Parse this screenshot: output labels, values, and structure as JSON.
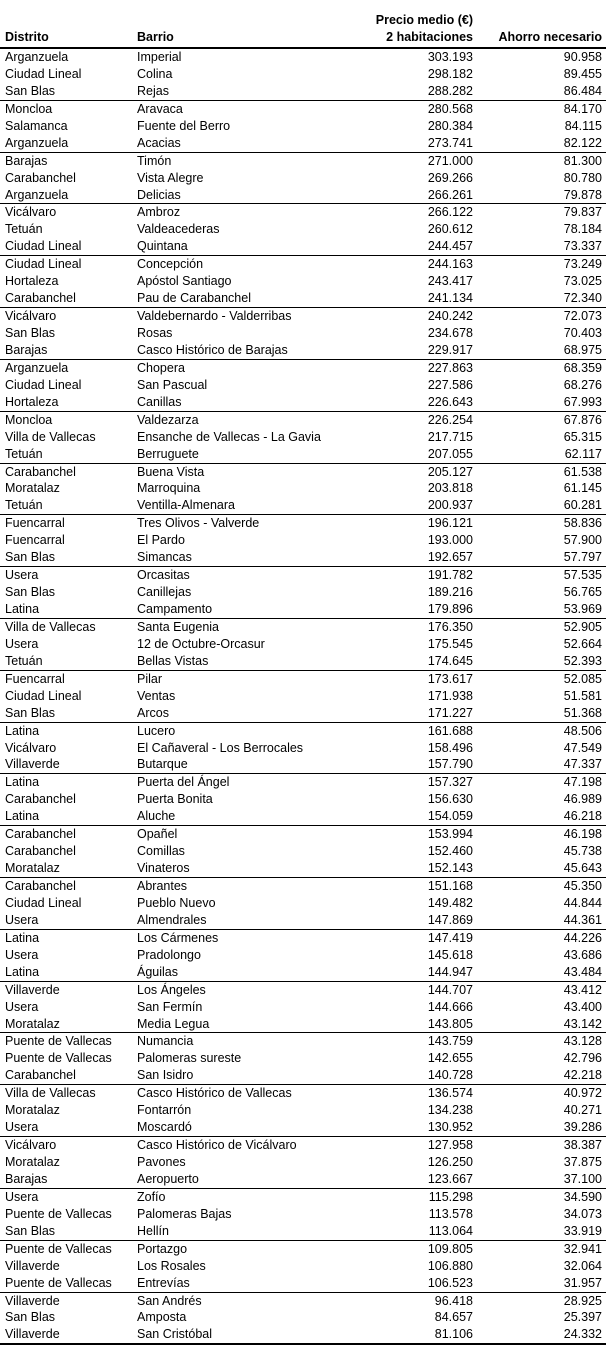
{
  "page": {
    "background_color": "#ffffff",
    "text_color": "#000000",
    "rule_color": "#000000"
  },
  "table": {
    "headers": {
      "distrito": "Distrito",
      "barrio": "Barrio",
      "precio_line1": "Precio medio (€)",
      "precio_line2": "2 habitaciones",
      "ahorro": "Ahorro necesario"
    },
    "group_size": 3,
    "rows": [
      [
        "Arganzuela",
        "Imperial",
        "303.193",
        "90.958"
      ],
      [
        "Ciudad Lineal",
        "Colina",
        "298.182",
        "89.455"
      ],
      [
        "San Blas",
        "Rejas",
        "288.282",
        "86.484"
      ],
      [
        "Moncloa",
        "Aravaca",
        "280.568",
        "84.170"
      ],
      [
        "Salamanca",
        "Fuente del Berro",
        "280.384",
        "84.115"
      ],
      [
        "Arganzuela",
        "Acacias",
        "273.741",
        "82.122"
      ],
      [
        "Barajas",
        "Timón",
        "271.000",
        "81.300"
      ],
      [
        "Carabanchel",
        "Vista Alegre",
        "269.266",
        "80.780"
      ],
      [
        "Arganzuela",
        "Delicias",
        "266.261",
        "79.878"
      ],
      [
        "Vicálvaro",
        "Ambroz",
        "266.122",
        "79.837"
      ],
      [
        "Tetuán",
        "Valdeacederas",
        "260.612",
        "78.184"
      ],
      [
        "Ciudad Lineal",
        "Quintana",
        "244.457",
        "73.337"
      ],
      [
        "Ciudad Lineal",
        "Concepción",
        "244.163",
        "73.249"
      ],
      [
        "Hortaleza",
        "Apóstol Santiago",
        "243.417",
        "73.025"
      ],
      [
        "Carabanchel",
        "Pau de Carabanchel",
        "241.134",
        "72.340"
      ],
      [
        "Vicálvaro",
        "Valdebernardo - Valderribas",
        "240.242",
        "72.073"
      ],
      [
        "San Blas",
        "Rosas",
        "234.678",
        "70.403"
      ],
      [
        "Barajas",
        "Casco Histórico de Barajas",
        "229.917",
        "68.975"
      ],
      [
        "Arganzuela",
        "Chopera",
        "227.863",
        "68.359"
      ],
      [
        "Ciudad Lineal",
        "San Pascual",
        "227.586",
        "68.276"
      ],
      [
        "Hortaleza",
        "Canillas",
        "226.643",
        "67.993"
      ],
      [
        "Moncloa",
        "Valdezarza",
        "226.254",
        "67.876"
      ],
      [
        "Villa de Vallecas",
        "Ensanche de Vallecas - La Gavia",
        "217.715",
        "65.315"
      ],
      [
        "Tetuán",
        "Berruguete",
        "207.055",
        "62.117"
      ],
      [
        "Carabanchel",
        "Buena Vista",
        "205.127",
        "61.538"
      ],
      [
        "Moratalaz",
        "Marroquina",
        "203.818",
        "61.145"
      ],
      [
        "Tetuán",
        "Ventilla-Almenara",
        "200.937",
        "60.281"
      ],
      [
        "Fuencarral",
        "Tres Olivos - Valverde",
        "196.121",
        "58.836"
      ],
      [
        "Fuencarral",
        "El Pardo",
        "193.000",
        "57.900"
      ],
      [
        "San Blas",
        "Simancas",
        "192.657",
        "57.797"
      ],
      [
        "Usera",
        "Orcasitas",
        "191.782",
        "57.535"
      ],
      [
        "San Blas",
        "Canillejas",
        "189.216",
        "56.765"
      ],
      [
        "Latina",
        "Campamento",
        "179.896",
        "53.969"
      ],
      [
        "Villa de Vallecas",
        "Santa Eugenia",
        "176.350",
        "52.905"
      ],
      [
        "Usera",
        "12 de Octubre-Orcasur",
        "175.545",
        "52.664"
      ],
      [
        "Tetuán",
        "Bellas Vistas",
        "174.645",
        "52.393"
      ],
      [
        "Fuencarral",
        "Pilar",
        "173.617",
        "52.085"
      ],
      [
        "Ciudad Lineal",
        "Ventas",
        "171.938",
        "51.581"
      ],
      [
        "San Blas",
        "Arcos",
        "171.227",
        "51.368"
      ],
      [
        "Latina",
        "Lucero",
        "161.688",
        "48.506"
      ],
      [
        "Vicálvaro",
        "El Cañaveral - Los Berrocales",
        "158.496",
        "47.549"
      ],
      [
        "Villaverde",
        "Butarque",
        "157.790",
        "47.337"
      ],
      [
        "Latina",
        "Puerta del Ángel",
        "157.327",
        "47.198"
      ],
      [
        "Carabanchel",
        "Puerta Bonita",
        "156.630",
        "46.989"
      ],
      [
        "Latina",
        "Aluche",
        "154.059",
        "46.218"
      ],
      [
        "Carabanchel",
        "Opañel",
        "153.994",
        "46.198"
      ],
      [
        "Carabanchel",
        "Comillas",
        "152.460",
        "45.738"
      ],
      [
        "Moratalaz",
        "Vinateros",
        "152.143",
        "45.643"
      ],
      [
        "Carabanchel",
        "Abrantes",
        "151.168",
        "45.350"
      ],
      [
        "Ciudad Lineal",
        "Pueblo Nuevo",
        "149.482",
        "44.844"
      ],
      [
        "Usera",
        "Almendrales",
        "147.869",
        "44.361"
      ],
      [
        "Latina",
        "Los Cármenes",
        "147.419",
        "44.226"
      ],
      [
        "Usera",
        "Pradolongo",
        "145.618",
        "43.686"
      ],
      [
        "Latina",
        "Águilas",
        "144.947",
        "43.484"
      ],
      [
        "Villaverde",
        "Los Ángeles",
        "144.707",
        "43.412"
      ],
      [
        "Usera",
        "San Fermín",
        "144.666",
        "43.400"
      ],
      [
        "Moratalaz",
        "Media Legua",
        "143.805",
        "43.142"
      ],
      [
        "Puente de Vallecas",
        "Numancia",
        "143.759",
        "43.128"
      ],
      [
        "Puente de Vallecas",
        "Palomeras sureste",
        "142.655",
        "42.796"
      ],
      [
        "Carabanchel",
        "San Isidro",
        "140.728",
        "42.218"
      ],
      [
        "Villa de Vallecas",
        "Casco Histórico de Vallecas",
        "136.574",
        "40.972"
      ],
      [
        "Moratalaz",
        "Fontarrón",
        "134.238",
        "40.271"
      ],
      [
        "Usera",
        "Moscardó",
        "130.952",
        "39.286"
      ],
      [
        "Vicálvaro",
        "Casco Histórico de Vicálvaro",
        "127.958",
        "38.387"
      ],
      [
        "Moratalaz",
        "Pavones",
        "126.250",
        "37.875"
      ],
      [
        "Barajas",
        "Aeropuerto",
        "123.667",
        "37.100"
      ],
      [
        "Usera",
        "Zofío",
        "115.298",
        "34.590"
      ],
      [
        "Puente de Vallecas",
        "Palomeras Bajas",
        "113.578",
        "34.073"
      ],
      [
        "San Blas",
        "Hellín",
        "113.064",
        "33.919"
      ],
      [
        "Puente de Vallecas",
        "Portazgo",
        "109.805",
        "32.941"
      ],
      [
        "Villaverde",
        "Los Rosales",
        "106.880",
        "32.064"
      ],
      [
        "Puente de Vallecas",
        "Entrevías",
        "106.523",
        "31.957"
      ],
      [
        "Villaverde",
        "San Andrés",
        "96.418",
        "28.925"
      ],
      [
        "San Blas",
        "Amposta",
        "84.657",
        "25.397"
      ],
      [
        "Villaverde",
        "San Cristóbal",
        "81.106",
        "24.332"
      ]
    ]
  }
}
